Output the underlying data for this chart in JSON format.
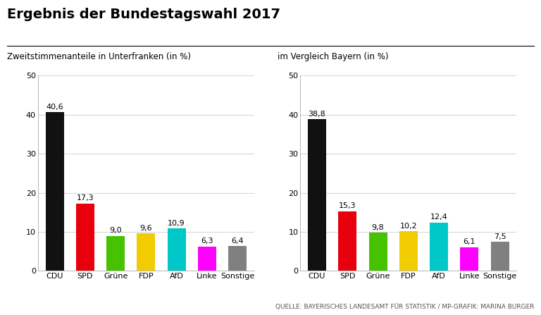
{
  "title": "Ergebnis der Bundestagswahl 2017",
  "subtitle_left": "Zweitstimmenanteile in Unterfranken (in %)",
  "subtitle_right": "im Vergleich Bayern (in %)",
  "categories": [
    "CDU",
    "SPD",
    "Grüne",
    "FDP",
    "AfD",
    "Linke",
    "Sonstige"
  ],
  "values_left": [
    40.6,
    17.3,
    9.0,
    9.6,
    10.9,
    6.3,
    6.4
  ],
  "values_right": [
    38.8,
    15.3,
    9.8,
    10.2,
    12.4,
    6.1,
    7.5
  ],
  "bar_colors": [
    "#111111",
    "#e8000d",
    "#46c200",
    "#f0cc00",
    "#00c8c8",
    "#ff00ff",
    "#808080"
  ],
  "ylim": [
    0,
    50
  ],
  "yticks": [
    0,
    10,
    20,
    30,
    40,
    50
  ],
  "source": "QUELLE: BAYERISCHES LANDESAMT FÜR STATISTIK / MP-GRAFIK: MARINA BURGER",
  "background_color": "#ffffff",
  "label_fontsize": 8,
  "value_fontsize": 8,
  "title_fontsize": 14,
  "subtitle_fontsize": 8.5,
  "tick_fontsize": 8,
  "source_fontsize": 6.5
}
